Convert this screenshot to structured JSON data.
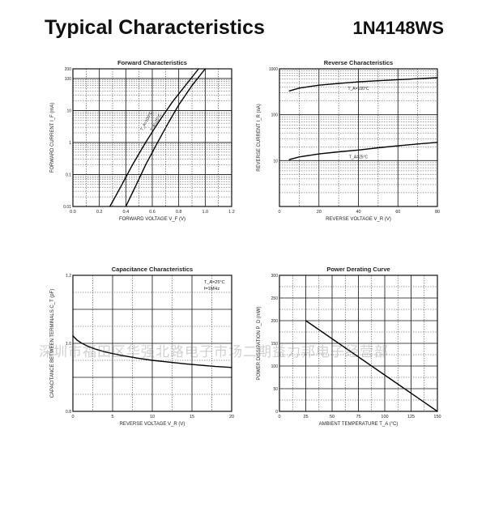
{
  "header": {
    "title": "Typical Characteristics",
    "part_number": "1N4148WS"
  },
  "watermark": "深圳市福田区华强北路电子市场二期益力邦电子经营部",
  "chart_data": [
    {
      "id": "forward",
      "type": "line",
      "title": "Forward Characteristics",
      "xlabel": "FORWARD VOLTAGE V_F (V)",
      "ylabel": "FORWARD CURRENT I_F (mA)",
      "xscale": "linear",
      "yscale": "log",
      "xlim": [
        0,
        1.2
      ],
      "ylim": [
        0.01,
        200
      ],
      "x_ticks": [
        "0.0",
        "0.2",
        "0.4",
        "0.6",
        "0.8",
        "1.0",
        "1.2"
      ],
      "y_ticks": [
        {
          "v": 200,
          "l": "200"
        },
        {
          "v": 100,
          "l": "100"
        },
        {
          "v": 10,
          "l": "10"
        },
        {
          "v": 1,
          "l": "1"
        },
        {
          "v": 0.1,
          "l": "0.1"
        },
        {
          "v": 0.01,
          "l": "0.01"
        }
      ],
      "series": [
        {
          "name": "T_A=100°C",
          "x": [
            0.28,
            0.36,
            0.45,
            0.55,
            0.65,
            0.75,
            0.85,
            0.95
          ],
          "y": [
            0.01,
            0.04,
            0.2,
            1.0,
            4.5,
            18,
            60,
            200
          ]
        },
        {
          "name": "T_A=25°C",
          "x": [
            0.4,
            0.47,
            0.55,
            0.64,
            0.72,
            0.8,
            0.9,
            1.0
          ],
          "y": [
            0.01,
            0.04,
            0.2,
            1.0,
            4.0,
            15,
            60,
            200
          ]
        }
      ],
      "grid": true
    },
    {
      "id": "reverse",
      "type": "line",
      "title": "Reverse Characteristics",
      "xlabel": "REVERSE VOLTAGE V_R (V)",
      "ylabel": "REVERSE CURRENT I_R (nA)",
      "xscale": "linear",
      "yscale": "log",
      "xlim": [
        0,
        80
      ],
      "ylim": [
        1,
        1000
      ],
      "x_ticks": [
        "0",
        "20",
        "40",
        "60",
        "80"
      ],
      "y_ticks": [
        {
          "v": 1000,
          "l": "1000"
        },
        {
          "v": 100,
          "l": "100"
        },
        {
          "v": 10,
          "l": "10"
        }
      ],
      "series": [
        {
          "name": "T_A=100°C",
          "x": [
            5,
            10,
            20,
            30,
            40,
            50,
            60,
            70,
            80
          ],
          "y": [
            330,
            380,
            440,
            480,
            520,
            550,
            580,
            610,
            640
          ]
        },
        {
          "name": "T_A=25°C",
          "x": [
            5,
            10,
            20,
            30,
            40,
            50,
            60,
            70,
            80
          ],
          "y": [
            10.5,
            12,
            14,
            15.5,
            17,
            19,
            21,
            23,
            25
          ]
        }
      ],
      "grid": true
    },
    {
      "id": "capacitance",
      "type": "line",
      "title": "Capacitance Characteristics",
      "xlabel": "REVERSE VOLTAGE V_R (V)",
      "ylabel": "CAPACITANCE BETWEEN TERMINALS C_T (pF)",
      "xscale": "linear",
      "yscale": "linear",
      "xlim": [
        0,
        20
      ],
      "ylim": [
        0.8,
        1.2
      ],
      "x_ticks": [
        "0",
        "5",
        "10",
        "15",
        "20"
      ],
      "y_ticks": [
        {
          "v": 1.2,
          "l": "1.2"
        },
        {
          "v": 1.0,
          "l": "1.0"
        },
        {
          "v": 0.8,
          "l": "0.8"
        }
      ],
      "annotation": [
        "T_A=25°C",
        "f=1MHz"
      ],
      "series": [
        {
          "name": "",
          "x": [
            0,
            0.5,
            1,
            2,
            3,
            4,
            6,
            8,
            10,
            12,
            14,
            16,
            18,
            20
          ],
          "y": [
            1.022,
            1.01,
            1.002,
            0.99,
            0.982,
            0.975,
            0.965,
            0.957,
            0.95,
            0.945,
            0.94,
            0.936,
            0.932,
            0.929
          ]
        }
      ],
      "grid": true
    },
    {
      "id": "derating",
      "type": "line",
      "title": "Power Derating Curve",
      "xlabel": "AMBIENT TEMPERATURE T_A (°C)",
      "ylabel": "POWER DISSIPATION P_D (mW)",
      "xscale": "linear",
      "yscale": "linear",
      "xlim": [
        0,
        150
      ],
      "ylim": [
        0,
        300
      ],
      "x_ticks": [
        "0",
        "25",
        "50",
        "75",
        "100",
        "125",
        "150"
      ],
      "y_ticks": [
        {
          "v": 300,
          "l": "300"
        },
        {
          "v": 250,
          "l": "250"
        },
        {
          "v": 200,
          "l": "200"
        },
        {
          "v": 150,
          "l": "150"
        },
        {
          "v": 100,
          "l": "100"
        },
        {
          "v": 50,
          "l": "50"
        },
        {
          "v": 0,
          "l": "0"
        }
      ],
      "series": [
        {
          "name": "",
          "x": [
            25,
            150
          ],
          "y": [
            200,
            0
          ]
        }
      ],
      "grid": true
    }
  ]
}
